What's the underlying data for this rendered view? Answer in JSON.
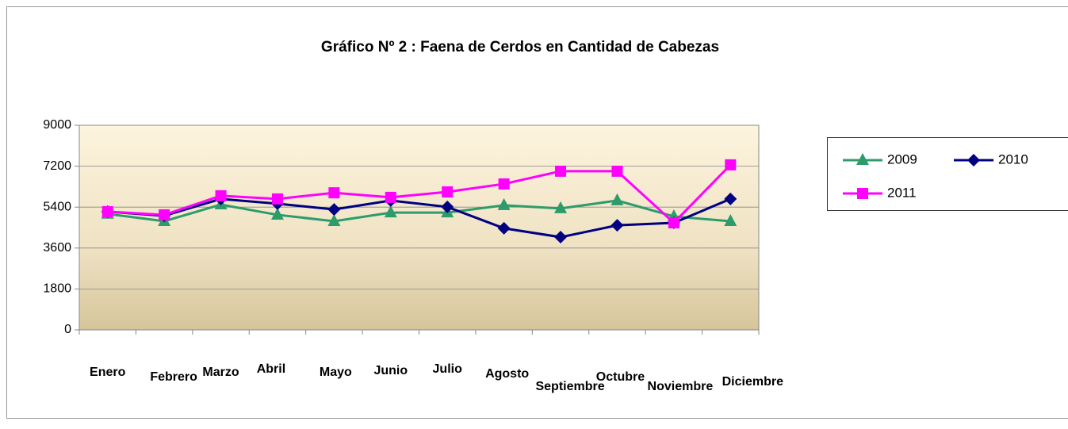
{
  "chart_data": {
    "type": "line",
    "title": "Gráfico Nº 2  :  Faena de Cerdos en Cantidad de Cabezas",
    "categories": [
      "Enero",
      "Febrero",
      "Marzo",
      "Abril",
      "Mayo",
      "Junio",
      "Julio",
      "Agosto",
      "Septiembre",
      "Octubre",
      "Noviembre",
      "Diciembre"
    ],
    "series": [
      {
        "name": "2009",
        "color": "#2e9b6a",
        "marker": "triangle",
        "values": [
          5100,
          4780,
          5510,
          5060,
          4780,
          5160,
          5160,
          5480,
          5340,
          5690,
          4990,
          4780
        ]
      },
      {
        "name": "2010",
        "color": "#000080",
        "marker": "diamond",
        "values": [
          5200,
          5020,
          5760,
          5550,
          5300,
          5690,
          5410,
          4470,
          4080,
          4600,
          4710,
          5760
        ]
      },
      {
        "name": "2011",
        "color": "#ff00ff",
        "marker": "square",
        "values": [
          5200,
          5060,
          5900,
          5760,
          6030,
          5830,
          6070,
          6420,
          6980,
          6980,
          4710,
          7260
        ]
      }
    ],
    "ylim": [
      0,
      9000
    ],
    "yticks": [
      0,
      1800,
      3600,
      5400,
      7200,
      9000
    ],
    "grid": true
  }
}
